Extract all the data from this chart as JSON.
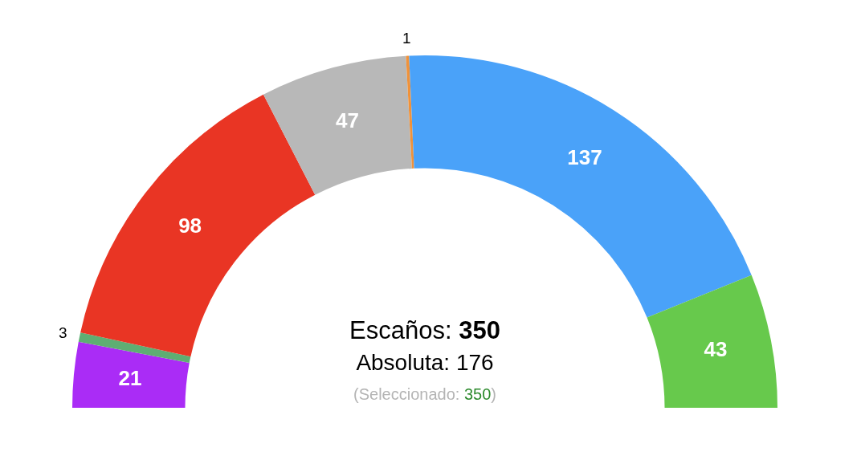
{
  "chart_data": {
    "type": "donut",
    "categories": [
      null,
      null,
      null,
      null,
      null,
      null,
      null
    ],
    "values": [
      21,
      3,
      98,
      47,
      1,
      137,
      43
    ],
    "colors": [
      "#aa2cf6",
      "#5eae73",
      "#e93524",
      "#b8b8b8",
      "#f0923a",
      "#4aa2f9",
      "#67c94c"
    ],
    "data_labels": true,
    "annotations": [
      "Escaños: 350",
      "Absoluta: 176",
      "(Seleccionado: 350)"
    ]
  }
}
